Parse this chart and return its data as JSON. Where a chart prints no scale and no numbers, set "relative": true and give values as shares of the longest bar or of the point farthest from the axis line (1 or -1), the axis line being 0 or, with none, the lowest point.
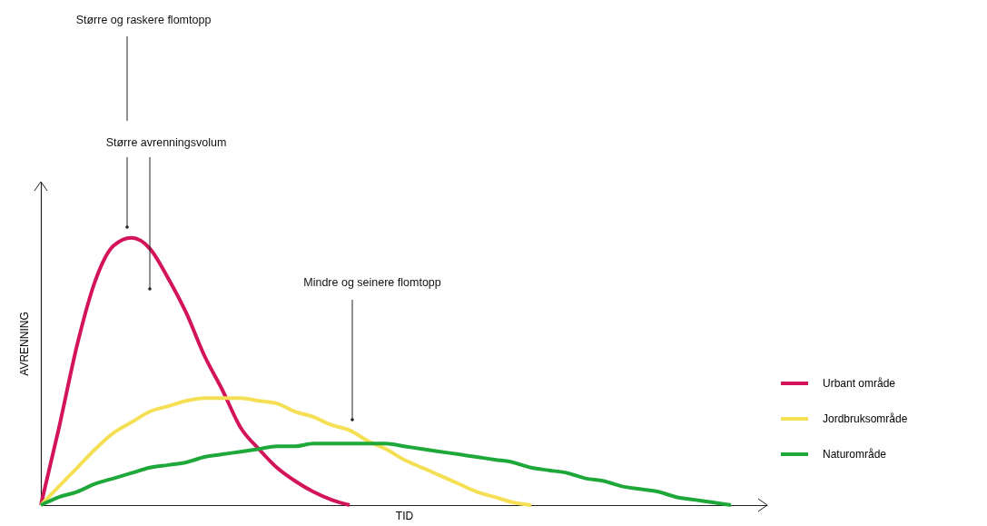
{
  "chart_data": {
    "type": "line",
    "relative": true,
    "xlabel": "TID",
    "ylabel": "AVRENNING",
    "legend": "right",
    "marker": "none",
    "line_style": "solid",
    "grid": false,
    "annotations": [
      "Større og raskere flomtopp",
      "Større avrenningsvolum",
      "Mindre og seinere flomtopp"
    ],
    "categories": [
      null,
      null,
      null,
      null,
      null,
      null,
      null,
      null,
      null,
      null,
      null,
      null,
      null,
      null,
      null,
      null,
      null,
      null,
      null,
      null,
      null,
      null,
      null,
      null,
      null,
      null,
      null,
      null,
      null,
      null,
      null,
      null,
      null,
      null,
      null,
      null,
      null,
      null,
      null,
      null,
      null
    ],
    "series": [
      {
        "name": "Urbant område",
        "color": "#d4145a",
        "values": [
          0,
          0.29,
          0.6,
          0.84,
          0.97,
          1,
          0.96,
          0.85,
          0.72,
          0.56,
          0.43,
          0.29,
          0.21,
          0.14,
          0.09,
          0.05,
          0.02,
          0,
          null,
          null,
          null,
          null,
          null,
          null,
          null,
          null,
          null,
          null,
          null,
          null,
          null,
          null,
          null,
          null,
          null,
          null,
          null,
          null,
          null,
          null,
          null
        ]
      },
      {
        "name": "Jordbruksområde",
        "color": "#f5df55",
        "values": [
          0,
          0.07,
          0.14,
          0.21,
          0.27,
          0.31,
          0.35,
          0.37,
          0.39,
          0.4,
          0.4,
          0.4,
          0.39,
          0.38,
          0.35,
          0.33,
          0.3,
          0.28,
          0.24,
          0.21,
          0.17,
          0.14,
          0.11,
          0.08,
          0.05,
          0.03,
          0.01,
          0,
          null,
          null,
          null,
          null,
          null,
          null,
          null,
          null,
          null,
          null,
          null,
          null,
          null
        ]
      },
      {
        "name": "Naturområde",
        "color": "#1fa83a",
        "values": [
          0,
          0.03,
          0.05,
          0.08,
          0.1,
          0.12,
          0.14,
          0.15,
          0.16,
          0.18,
          0.19,
          0.2,
          0.21,
          0.22,
          0.22,
          0.23,
          0.23,
          0.23,
          0.23,
          0.23,
          0.22,
          0.21,
          0.2,
          0.19,
          0.18,
          0.17,
          0.16,
          0.14,
          0.13,
          0.12,
          0.1,
          0.09,
          0.07,
          0.06,
          0.05,
          0.03,
          0.02,
          0.01,
          0,
          null,
          null
        ]
      }
    ]
  }
}
